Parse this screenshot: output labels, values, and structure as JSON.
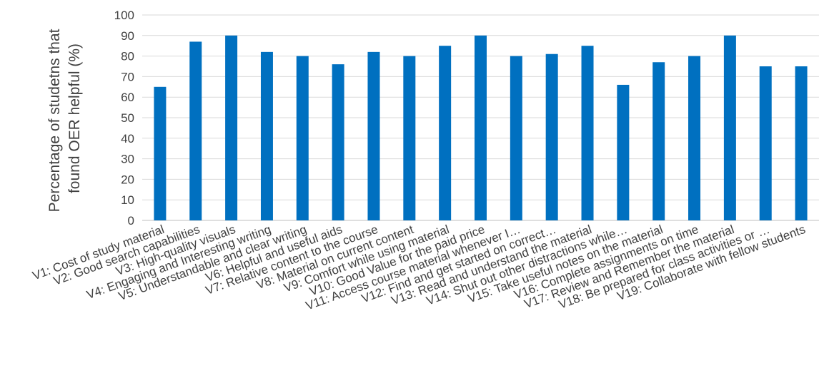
{
  "chart_data": {
    "type": "bar",
    "title": "",
    "xlabel": "",
    "ylabel_lines": [
      "Percentage of studetns that",
      "found OER helpful (%)"
    ],
    "ylim": [
      0,
      100
    ],
    "yticks": [
      0,
      10,
      20,
      30,
      40,
      50,
      60,
      70,
      80,
      90,
      100
    ],
    "grid": true,
    "legend": "none",
    "bar_color": "#0070C0",
    "grid_color": "#D9D9D9",
    "categories": [
      "V1: Cost of study material",
      "V2: Good search capabilities",
      "V3: High-quality visuals",
      "V4: Engaging and Interesting writing",
      "V5: Understandable and clear writing",
      "V6: Helpful and useful aids",
      "V7: Relative content to the course",
      "V8: Material on current content",
      "V9: Comfort while using material",
      "V10: Good Value for the paid price",
      "V11: Access course material whenever I…",
      "V12: Find and get started on correct…",
      "V13: Read and understand the material",
      "V14: Shut out other distractions while…",
      "V15: Take useful notes on the material",
      "V16: Complete assignments on time",
      "V17: Review and Remember the material",
      "V18: Be prepared for class activities or …",
      "V19: Collaborate with fellow students"
    ],
    "values": [
      65,
      87,
      90,
      82,
      80,
      76,
      82,
      80,
      85,
      90,
      80,
      81,
      85,
      66,
      77,
      80,
      90,
      75,
      75
    ]
  }
}
